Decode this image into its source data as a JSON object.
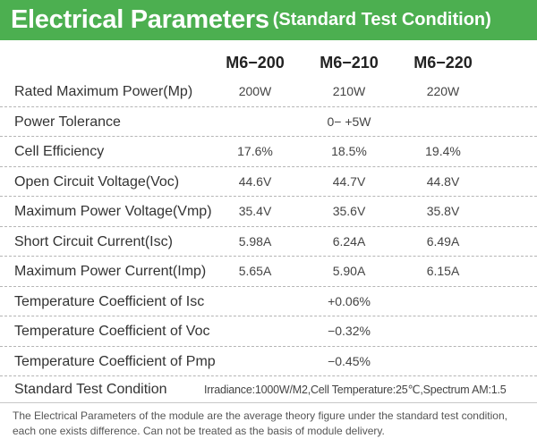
{
  "title": {
    "main": "Electrical Parameters",
    "sub": "(Standard Test Condition)"
  },
  "columns": [
    "M6−200",
    "M6−210",
    "M6−220"
  ],
  "rows": [
    {
      "label": "Rated Maximum Power(Mp)",
      "values": [
        "200W",
        "210W",
        "220W"
      ]
    },
    {
      "label": "Power Tolerance",
      "merged": "0− +5W"
    },
    {
      "label": "Cell Efficiency",
      "values": [
        "17.6%",
        "18.5%",
        "19.4%"
      ]
    },
    {
      "label": "Open Circuit Voltage(Voc)",
      "values": [
        "44.6V",
        "44.7V",
        "44.8V"
      ]
    },
    {
      "label": "Maximum Power Voltage(Vmp)",
      "values": [
        "35.4V",
        "35.6V",
        "35.8V"
      ]
    },
    {
      "label": "Short Circuit Current(Isc)",
      "values": [
        "5.98A",
        "6.24A",
        "6.49A"
      ]
    },
    {
      "label": "Maximum Power Current(Imp)",
      "values": [
        "5.65A",
        "5.90A",
        "6.15A"
      ]
    },
    {
      "label": "Temperature Coefficient of Isc",
      "merged": "+0.06%"
    },
    {
      "label": "Temperature Coefficient of Voc",
      "merged": "−0.32%"
    },
    {
      "label": "Temperature Coefficient of Pmp",
      "merged": "−0.45%"
    }
  ],
  "stc": {
    "label": "Standard Test Condition",
    "value": "Irradiance:1000W/M2,Cell Temperature:25℃,Spectrum AM:1.5"
  },
  "footnote": "The Electrical Parameters of the module are the average theory figure under the standard test condition, each one exists difference. Can not be treated as the basis of module delivery."
}
